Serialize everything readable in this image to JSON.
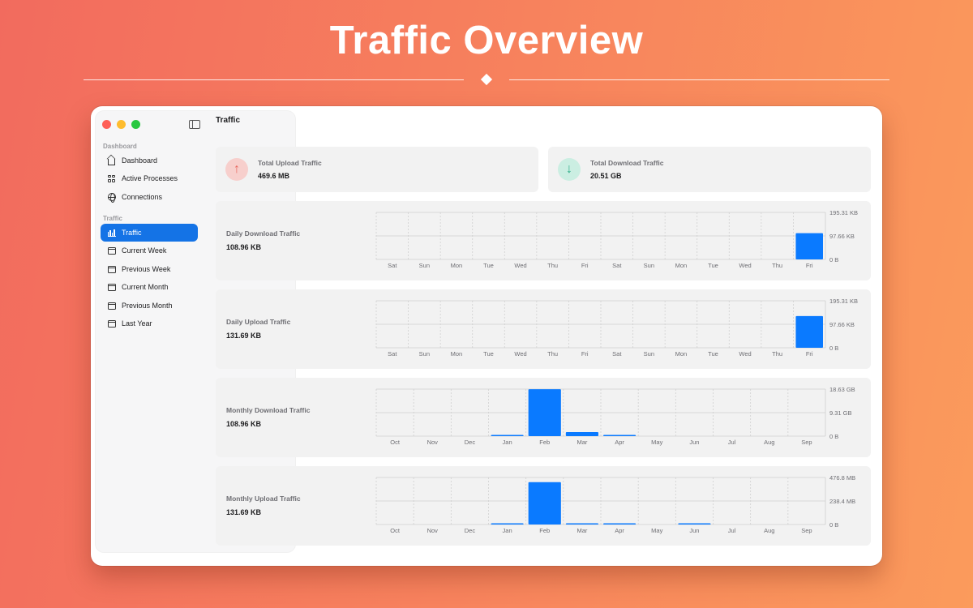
{
  "hero": {
    "title": "Traffic Overview"
  },
  "window": {
    "title": "Traffic"
  },
  "sidebar": {
    "sections": [
      {
        "label": "Dashboard",
        "items": [
          {
            "label": "Dashboard",
            "icon": "house-icon"
          },
          {
            "label": "Active Processes",
            "icon": "grid-icon"
          },
          {
            "label": "Connections",
            "icon": "globe-icon"
          }
        ]
      },
      {
        "label": "Traffic",
        "items": [
          {
            "label": "Traffic",
            "icon": "chart-bars-icon",
            "active": true
          },
          {
            "label": "Current Week",
            "icon": "calendar-icon"
          },
          {
            "label": "Previous Week",
            "icon": "calendar-icon"
          },
          {
            "label": "Current Month",
            "icon": "calendar-icon"
          },
          {
            "label": "Previous Month",
            "icon": "calendar-icon"
          },
          {
            "label": "Last Year",
            "icon": "calendar-icon"
          }
        ]
      }
    ]
  },
  "stats": {
    "upload": {
      "title": "Total Upload Traffic",
      "value": "469.6 MB",
      "icon": "arrow-up-icon",
      "color": "#e8675f",
      "bg": "#f7cfcc"
    },
    "download": {
      "title": "Total Download Traffic",
      "value": "20.51 GB",
      "icon": "arrow-down-icon",
      "color": "#2fae8a",
      "bg": "#cbeee2"
    }
  },
  "accent": "#0a7aff",
  "chart_data": [
    {
      "type": "bar",
      "title": "Daily Download Traffic",
      "value_label": "108.96 KB",
      "categories": [
        "Sat",
        "Sun",
        "Mon",
        "Tue",
        "Wed",
        "Thu",
        "Fri",
        "Sat",
        "Sun",
        "Mon",
        "Tue",
        "Wed",
        "Thu",
        "Fri"
      ],
      "values": [
        0,
        0,
        0,
        0,
        0,
        0,
        0,
        0,
        0,
        0,
        0,
        0,
        0,
        108.96
      ],
      "unit": "KB",
      "ylim": [
        0,
        195.31
      ],
      "yticks": [
        {
          "v": 195.31,
          "label": "195.31 KB"
        },
        {
          "v": 97.66,
          "label": "97.66 KB"
        },
        {
          "v": 0,
          "label": "0 B"
        }
      ]
    },
    {
      "type": "bar",
      "title": "Daily Upload Traffic",
      "value_label": "131.69 KB",
      "categories": [
        "Sat",
        "Sun",
        "Mon",
        "Tue",
        "Wed",
        "Thu",
        "Fri",
        "Sat",
        "Sun",
        "Mon",
        "Tue",
        "Wed",
        "Thu",
        "Fri"
      ],
      "values": [
        0,
        0,
        0,
        0,
        0,
        0,
        0,
        0,
        0,
        0,
        0,
        0,
        0,
        131.69
      ],
      "unit": "KB",
      "ylim": [
        0,
        195.31
      ],
      "yticks": [
        {
          "v": 195.31,
          "label": "195.31 KB"
        },
        {
          "v": 97.66,
          "label": "97.66 KB"
        },
        {
          "v": 0,
          "label": "0 B"
        }
      ]
    },
    {
      "type": "bar",
      "title": "Monthly Download Traffic",
      "value_label": "108.96 KB",
      "categories": [
        "Oct",
        "Nov",
        "Dec",
        "Jan",
        "Feb",
        "Mar",
        "Apr",
        "May",
        "Jun",
        "Jul",
        "Aug",
        "Sep"
      ],
      "values": [
        0,
        0,
        0,
        0.2,
        18.6,
        1.6,
        0.05,
        0,
        0,
        0,
        0,
        0
      ],
      "unit": "GB",
      "ylim": [
        0,
        18.63
      ],
      "yticks": [
        {
          "v": 18.63,
          "label": "18.63 GB"
        },
        {
          "v": 9.31,
          "label": "9.31 GB"
        },
        {
          "v": 0,
          "label": "0 B"
        }
      ]
    },
    {
      "type": "bar",
      "title": "Monthly Upload Traffic",
      "value_label": "131.69 KB",
      "categories": [
        "Oct",
        "Nov",
        "Dec",
        "Jan",
        "Feb",
        "Mar",
        "Apr",
        "May",
        "Jun",
        "Jul",
        "Aug",
        "Sep"
      ],
      "values": [
        0,
        0,
        0,
        5,
        430,
        3,
        1,
        0,
        4,
        0,
        0,
        0
      ],
      "unit": "MB",
      "ylim": [
        0,
        476.8
      ],
      "yticks": [
        {
          "v": 476.8,
          "label": "476.8 MB"
        },
        {
          "v": 238.4,
          "label": "238.4 MB"
        },
        {
          "v": 0,
          "label": "0 B"
        }
      ]
    }
  ]
}
